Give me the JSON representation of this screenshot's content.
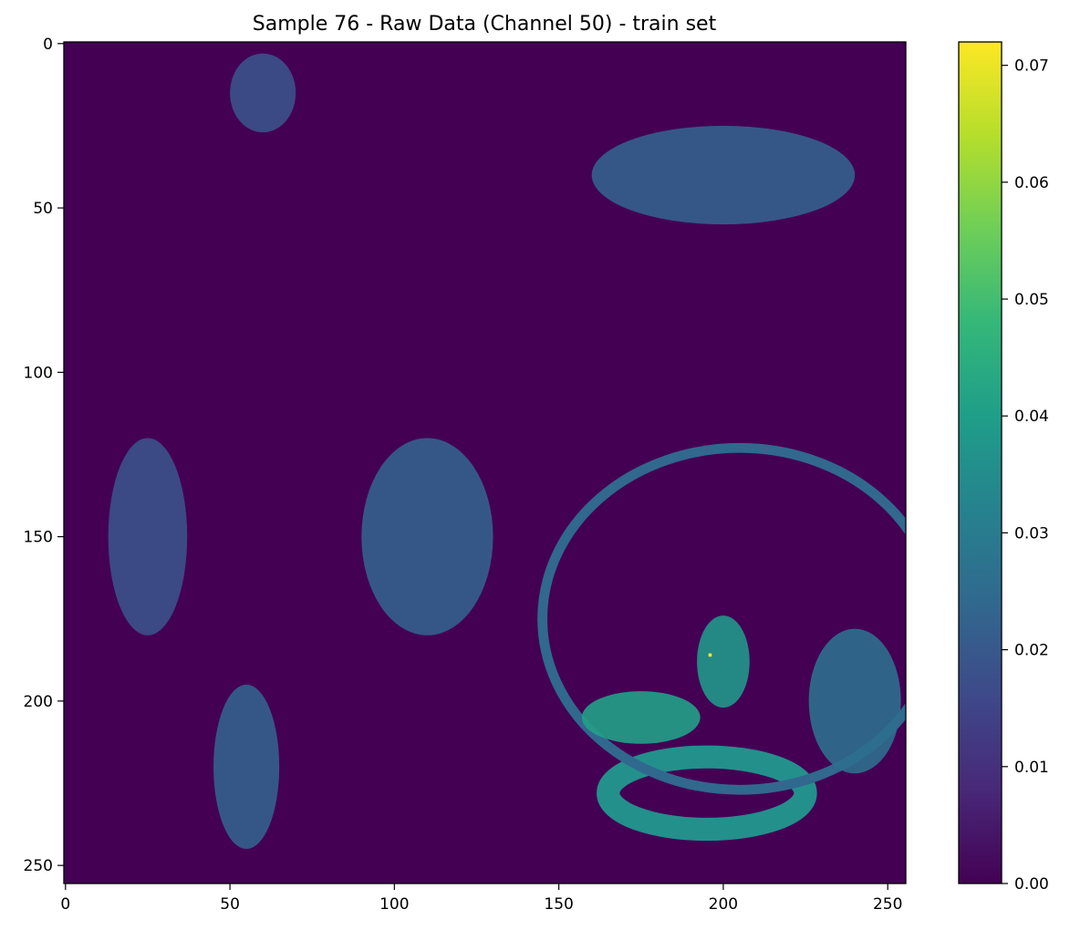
{
  "chart_data": {
    "type": "heatmap",
    "title": "Sample 76 - Raw Data (Channel 50) - train set",
    "xlabel": "",
    "ylabel": "",
    "xlim": [
      0,
      255
    ],
    "ylim": [
      255,
      0
    ],
    "x_ticks": [
      {
        "value": 0,
        "label": "0"
      },
      {
        "value": 50,
        "label": "50"
      },
      {
        "value": 100,
        "label": "100"
      },
      {
        "value": 150,
        "label": "150"
      },
      {
        "value": 200,
        "label": "200"
      },
      {
        "value": 250,
        "label": "250"
      }
    ],
    "y_ticks": [
      {
        "value": 0,
        "label": "0"
      },
      {
        "value": 50,
        "label": "50"
      },
      {
        "value": 100,
        "label": "100"
      },
      {
        "value": 150,
        "label": "150"
      },
      {
        "value": 200,
        "label": "200"
      },
      {
        "value": 250,
        "label": "250"
      }
    ],
    "colormap": "viridis",
    "colormap_stops": [
      "#440154",
      "#482878",
      "#3e4989",
      "#31688e",
      "#26828e",
      "#1f9e89",
      "#35b779",
      "#6ece58",
      "#b5de2b",
      "#fde725"
    ],
    "colorbar": {
      "vmin": 0.0,
      "vmax": 0.072,
      "ticks": [
        {
          "value": 0.0,
          "label": "0.00"
        },
        {
          "value": 0.01,
          "label": "0.01"
        },
        {
          "value": 0.02,
          "label": "0.02"
        },
        {
          "value": 0.03,
          "label": "0.03"
        },
        {
          "value": 0.04,
          "label": "0.04"
        },
        {
          "value": 0.05,
          "label": "0.05"
        },
        {
          "value": 0.06,
          "label": "0.06"
        },
        {
          "value": 0.07,
          "label": "0.07"
        }
      ]
    },
    "grid": false,
    "image_size": [
      256,
      256
    ],
    "background_value": 0.0,
    "peak_value": 0.072,
    "regions": [
      {
        "name": "tissue-ring-lower",
        "shape": "ring",
        "cx": 195,
        "cy": 228,
        "rx": 30,
        "ry": 11,
        "value": 0.036
      },
      {
        "name": "lumen-wall",
        "shape": "ellipse-outline",
        "cx": 205,
        "cy": 175,
        "rx": 60,
        "ry": 52,
        "value": 0.024
      },
      {
        "name": "bright-cluster",
        "shape": "blob",
        "cx": 175,
        "cy": 205,
        "rx": 18,
        "ry": 8,
        "value": 0.041
      },
      {
        "name": "bright-arm",
        "shape": "blob",
        "cx": 200,
        "cy": 188,
        "rx": 8,
        "ry": 14,
        "value": 0.038
      },
      {
        "name": "right-lobe",
        "shape": "blob",
        "cx": 240,
        "cy": 200,
        "rx": 14,
        "ry": 22,
        "value": 0.026
      },
      {
        "name": "mid-mass",
        "shape": "blob",
        "cx": 110,
        "cy": 150,
        "rx": 20,
        "ry": 30,
        "value": 0.022
      },
      {
        "name": "upper-band",
        "shape": "band",
        "cx": 200,
        "cy": 40,
        "rx": 40,
        "ry": 15,
        "value": 0.022
      },
      {
        "name": "left-strand",
        "shape": "blob",
        "cx": 25,
        "cy": 150,
        "rx": 12,
        "ry": 30,
        "value": 0.018
      },
      {
        "name": "lower-left-strand",
        "shape": "blob",
        "cx": 55,
        "cy": 220,
        "rx": 10,
        "ry": 25,
        "value": 0.022
      },
      {
        "name": "upper-left",
        "shape": "blob",
        "cx": 60,
        "cy": 15,
        "rx": 10,
        "ry": 12,
        "value": 0.018
      }
    ],
    "hotspot": {
      "x": 196,
      "y": 186,
      "value": 0.072
    }
  }
}
